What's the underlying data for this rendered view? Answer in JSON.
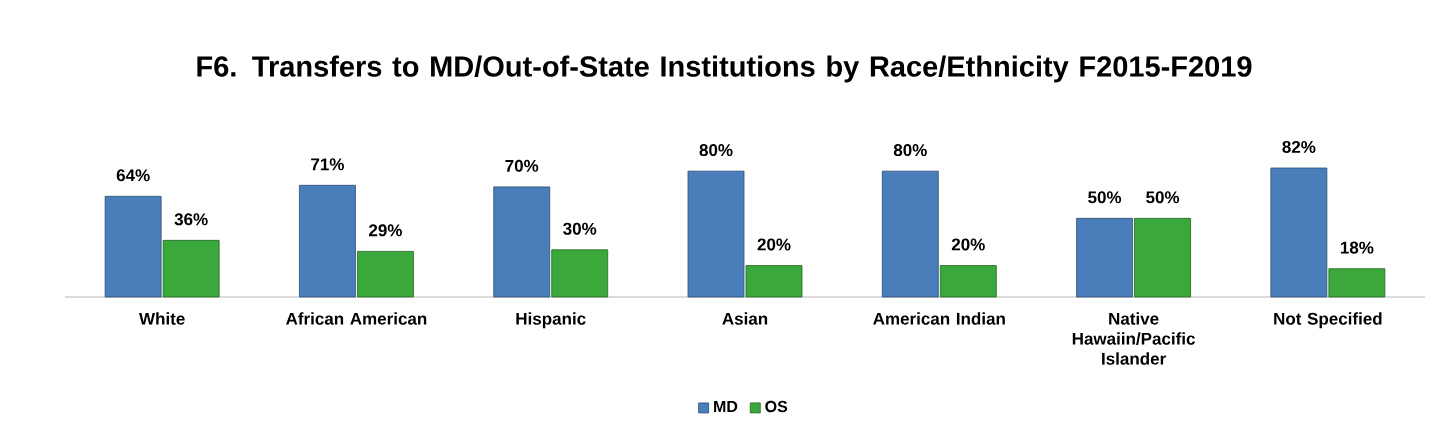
{
  "chart_data": {
    "type": "bar",
    "title": "F6. Transfers to MD/Out-of-State Institutions by Race/Ethnicity F2015-F2019",
    "categories": [
      "White",
      "African American",
      "Hispanic",
      "Asian",
      "American Indian",
      "Native Hawaiin/Pacific Islander",
      "Not Specified"
    ],
    "series": [
      {
        "name": "MD",
        "color": "#4a7ebb",
        "values": [
          64,
          71,
          70,
          80,
          80,
          50,
          82
        ],
        "value_labels": [
          "64%",
          "71%",
          "70%",
          "80%",
          "80%",
          "50%",
          "82%"
        ]
      },
      {
        "name": "OS",
        "color": "#3aa83a",
        "values": [
          36,
          29,
          30,
          20,
          20,
          50,
          18
        ],
        "value_labels": [
          "36%",
          "29%",
          "30%",
          "20%",
          "20%",
          "50%",
          "18%"
        ]
      }
    ],
    "legend": "bottom"
  }
}
